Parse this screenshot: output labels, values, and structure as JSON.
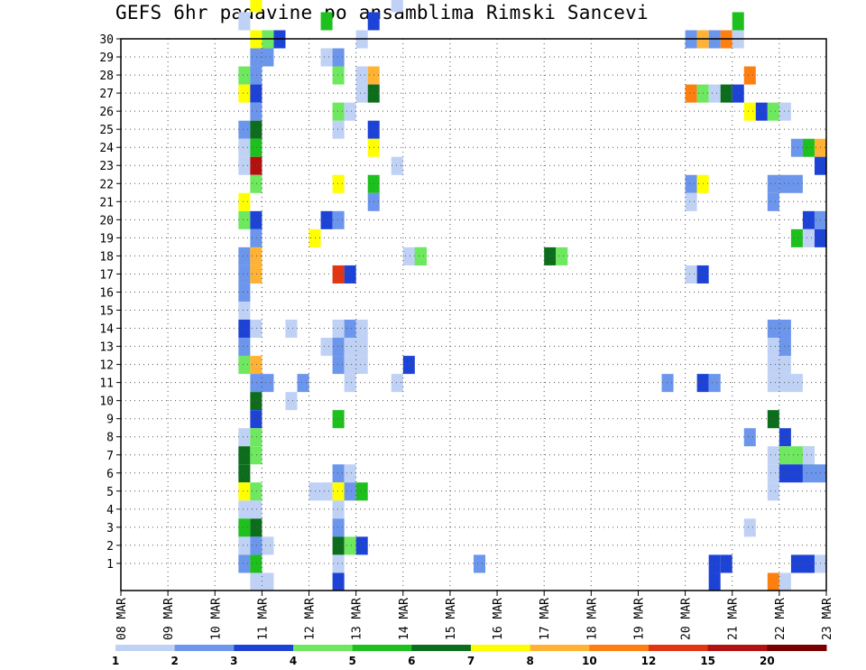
{
  "chart_data": {
    "type": "heatmap",
    "title": "GEFS 6hr padavine po ansamblima Rimski Sancevi",
    "x_labels": [
      "08 MAR",
      "09 MAR",
      "10 MAR",
      "11 MAR",
      "12 MAR",
      "13 MAR",
      "14 MAR",
      "15 MAR",
      "16 MAR",
      "17 MAR",
      "18 MAR",
      "19 MAR",
      "20 MAR",
      "21 MAR",
      "22 MAR",
      "23 MAR"
    ],
    "y_labels": [
      "1",
      "2",
      "3",
      "4",
      "5",
      "6",
      "7",
      "8",
      "9",
      "10",
      "11",
      "12",
      "13",
      "14",
      "15",
      "16",
      "17",
      "18",
      "19",
      "20",
      "21",
      "22",
      "23",
      "24",
      "25",
      "26",
      "27",
      "28",
      "29",
      "30"
    ],
    "grid": true,
    "colorbar": {
      "labels": [
        "1",
        "2",
        "3",
        "4",
        "5",
        "6",
        "7",
        "8",
        "10",
        "12",
        "15",
        "20"
      ],
      "colors": [
        "#bfd1f5",
        "#6c95ec",
        "#1d43d6",
        "#6ee85e",
        "#1ec01e",
        "#0c6e1c",
        "#ffff00",
        "#ffb233",
        "#fd7f0f",
        "#e33512",
        "#b31010",
        "#7a0000"
      ]
    },
    "legend": "colorbar-bottom",
    "cells": [
      [
        0,
        2,
        8,
        1
      ],
      [
        0,
        3,
        10,
        2
      ],
      [
        0,
        3,
        2,
        2
      ],
      [
        0,
        4,
        19,
        1
      ],
      [
        0,
        4,
        1,
        2
      ],
      [
        0,
        6,
        14,
        2
      ],
      [
        0,
        7,
        17,
        2
      ],
      [
        0,
        7,
        1,
        2
      ],
      [
        0,
        10,
        26,
        2
      ],
      [
        0,
        12,
        32,
        1
      ],
      [
        0,
        12,
        33,
        2
      ],
      [
        0,
        13,
        34,
        2
      ],
      [
        0,
        17,
        29,
        0
      ],
      [
        0,
        4,
        20,
        1
      ],
      [
        0,
        4,
        21,
        1
      ],
      [
        1,
        2,
        8,
        0
      ],
      [
        1,
        2,
        14,
        3
      ],
      [
        1,
        2,
        7,
        2
      ],
      [
        1,
        2,
        1,
        5
      ],
      [
        1,
        14,
        8,
        2
      ],
      [
        1,
        15,
        8,
        2
      ],
      [
        1,
        16,
        8,
        0
      ],
      [
        1,
        20,
        6,
        4
      ],
      [
        1,
        20,
        5,
        0
      ],
      [
        1,
        21,
        6,
        0
      ],
      [
        1,
        28,
        4,
        2
      ],
      [
        1,
        29,
        7,
        1
      ],
      [
        1,
        30,
        2,
        2
      ],
      [
        1,
        31,
        5,
        3
      ],
      [
        1,
        31,
        8,
        3
      ],
      [
        1,
        29,
        4,
        3
      ],
      [
        1,
        29,
        3,
        2
      ],
      [
        1,
        32,
        4,
        2
      ],
      [
        1,
        33,
        4,
        0
      ],
      [
        1,
        33,
        5,
        0
      ],
      [
        1,
        23,
        1,
        7
      ],
      [
        1,
        23,
        2,
        4
      ],
      [
        1,
        23,
        3,
        0
      ],
      [
        1,
        23,
        4,
        2
      ],
      [
        1,
        23,
        5,
        0
      ],
      [
        1,
        23,
        6,
        6
      ],
      [
        1,
        23,
        12,
        2
      ],
      [
        1,
        23,
        13,
        0
      ],
      [
        1,
        24,
        13,
        1
      ],
      [
        1,
        24,
        14,
        4
      ],
      [
        1,
        23,
        18,
        2
      ],
      [
        1,
        23,
        22,
        6
      ],
      [
        1,
        23,
        24,
        6
      ],
      [
        1,
        23,
        25,
        3
      ],
      [
        1,
        24,
        26,
        0
      ],
      [
        1,
        24,
        27,
        1
      ],
      [
        1,
        25,
        27,
        6
      ],
      [
        1,
        25,
        28,
        2
      ],
      [
        1,
        25,
        29,
        3
      ],
      [
        1,
        24,
        30,
        0
      ],
      [
        1,
        24,
        31,
        0
      ],
      [
        1,
        25,
        33,
        3
      ],
      [
        1,
        23,
        34,
        2
      ],
      [
        1,
        24,
        35,
        1
      ],
      [
        1,
        25,
        35,
        2
      ],
      [
        1,
        26,
        35,
        2
      ],
      [
        1,
        25,
        36,
        1
      ],
      [
        2,
        2,
        8,
        1
      ],
      [
        2,
        2,
        9,
        1
      ],
      [
        2,
        2,
        13,
        1
      ],
      [
        2,
        2,
        14,
        1
      ],
      [
        1,
        2,
        9,
        0
      ],
      [
        1,
        2,
        13,
        0
      ],
      [
        1,
        2,
        7,
        0
      ],
      [
        1,
        2,
        1,
        0
      ]
    ]
  },
  "cells_rgb_source_note": ""
}
